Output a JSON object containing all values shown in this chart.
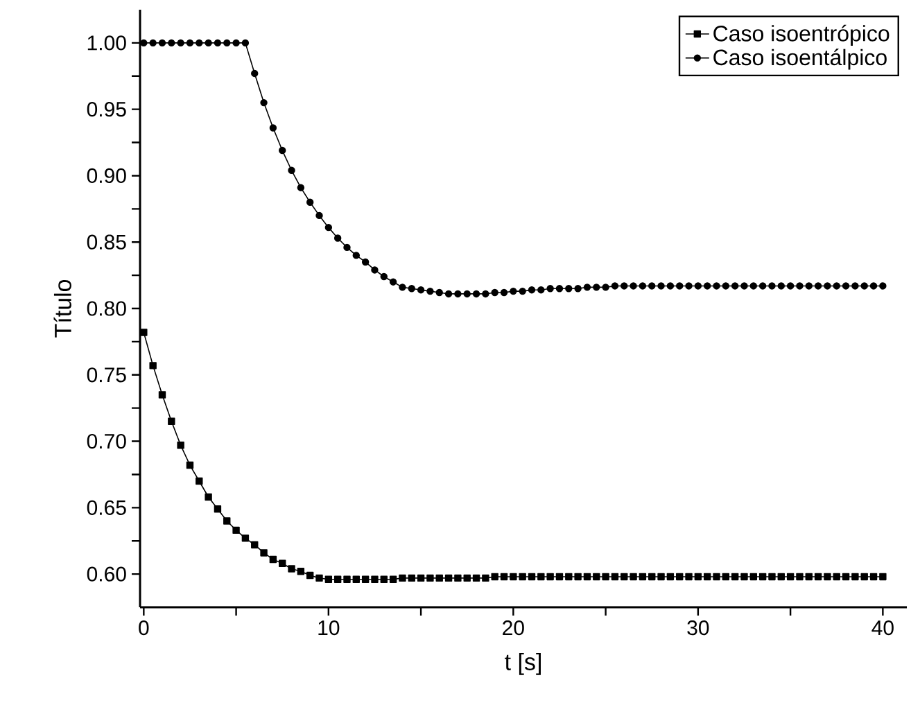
{
  "chart_data": {
    "type": "line",
    "xlabel": "t [s]",
    "ylabel": "Título",
    "x": [
      0,
      0.5,
      1,
      1.5,
      2,
      2.5,
      3,
      3.5,
      4,
      4.5,
      5,
      5.5,
      6,
      6.5,
      7,
      7.5,
      8,
      8.5,
      9,
      9.5,
      10,
      10.5,
      11,
      11.5,
      12,
      12.5,
      13,
      13.5,
      14,
      14.5,
      15,
      15.5,
      16,
      16.5,
      17,
      17.5,
      18,
      18.5,
      19,
      19.5,
      20,
      20.5,
      21,
      21.5,
      22,
      22.5,
      23,
      23.5,
      24,
      24.5,
      25,
      25.5,
      26,
      26.5,
      27,
      27.5,
      28,
      28.5,
      29,
      29.5,
      30,
      30.5,
      31,
      31.5,
      32,
      32.5,
      33,
      33.5,
      34,
      34.5,
      35,
      35.5,
      36,
      36.5,
      37,
      37.5,
      38,
      38.5,
      39,
      39.5,
      40
    ],
    "series": [
      {
        "name": "Caso isoentrópico",
        "color": "#000000",
        "marker": "square",
        "values": [
          0.782,
          0.757,
          0.735,
          0.715,
          0.697,
          0.682,
          0.67,
          0.658,
          0.649,
          0.64,
          0.633,
          0.627,
          0.622,
          0.616,
          0.611,
          0.608,
          0.604,
          0.602,
          0.599,
          0.597,
          0.596,
          0.596,
          0.596,
          0.596,
          0.596,
          0.596,
          0.596,
          0.596,
          0.597,
          0.597,
          0.597,
          0.597,
          0.597,
          0.597,
          0.597,
          0.597,
          0.597,
          0.597,
          0.598,
          0.598,
          0.598,
          0.598,
          0.598,
          0.598,
          0.598,
          0.598,
          0.598,
          0.598,
          0.598,
          0.598,
          0.598,
          0.598,
          0.598,
          0.598,
          0.598,
          0.598,
          0.598,
          0.598,
          0.598,
          0.598,
          0.598,
          0.598,
          0.598,
          0.598,
          0.598,
          0.598,
          0.598,
          0.598,
          0.598,
          0.598,
          0.598,
          0.598,
          0.598,
          0.598,
          0.598,
          0.598,
          0.598,
          0.598,
          0.598,
          0.598,
          0.598
        ]
      },
      {
        "name": "Caso isoentálpico",
        "color": "#000000",
        "marker": "circle",
        "values": [
          1.0,
          1.0,
          1.0,
          1.0,
          1.0,
          1.0,
          1.0,
          1.0,
          1.0,
          1.0,
          1.0,
          1.0,
          0.977,
          0.955,
          0.936,
          0.919,
          0.904,
          0.891,
          0.88,
          0.87,
          0.861,
          0.853,
          0.846,
          0.84,
          0.835,
          0.829,
          0.824,
          0.82,
          0.816,
          0.815,
          0.814,
          0.813,
          0.812,
          0.811,
          0.811,
          0.811,
          0.811,
          0.811,
          0.812,
          0.812,
          0.813,
          0.813,
          0.814,
          0.814,
          0.815,
          0.815,
          0.815,
          0.815,
          0.816,
          0.816,
          0.816,
          0.817,
          0.817,
          0.817,
          0.817,
          0.817,
          0.817,
          0.817,
          0.817,
          0.817,
          0.817,
          0.817,
          0.817,
          0.817,
          0.817,
          0.817,
          0.817,
          0.817,
          0.817,
          0.817,
          0.817,
          0.817,
          0.817,
          0.817,
          0.817,
          0.817,
          0.817,
          0.817,
          0.817,
          0.817,
          0.817
        ]
      }
    ],
    "xlim": [
      -0.2,
      41.3
    ],
    "ylim": [
      0.575,
      1.025
    ],
    "xticks": [
      0,
      {
        "value": 5,
        "label": null
      },
      10,
      {
        "value": 15,
        "label": null
      },
      20,
      {
        "value": 25,
        "label": null
      },
      30,
      {
        "value": 35,
        "label": null
      },
      40
    ],
    "yticks": [
      {
        "value": 0.6,
        "label": "0.60"
      },
      {
        "value": 0.625,
        "label": null
      },
      {
        "value": 0.65,
        "label": "0.65"
      },
      {
        "value": 0.675,
        "label": null
      },
      {
        "value": 0.7,
        "label": "0.70"
      },
      {
        "value": 0.725,
        "label": null
      },
      {
        "value": 0.75,
        "label": "0.75"
      },
      {
        "value": 0.775,
        "label": null
      },
      {
        "value": 0.8,
        "label": "0.80"
      },
      {
        "value": 0.825,
        "label": null
      },
      {
        "value": 0.85,
        "label": "0.85"
      },
      {
        "value": 0.875,
        "label": null
      },
      {
        "value": 0.9,
        "label": "0.90"
      },
      {
        "value": 0.925,
        "label": null
      },
      {
        "value": 0.95,
        "label": "0.95"
      },
      {
        "value": 0.975,
        "label": null
      },
      {
        "value": 1.0,
        "label": "1.00"
      }
    ],
    "legend": "top right",
    "grid": false,
    "line_style": "solid"
  }
}
